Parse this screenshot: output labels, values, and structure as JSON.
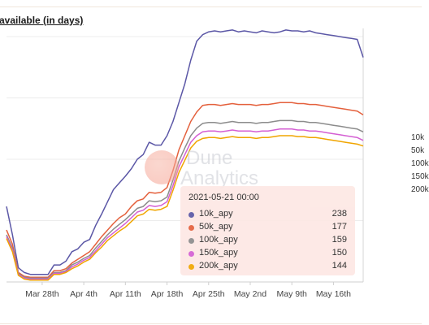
{
  "title": "available (in days)",
  "legend_right": [
    "10k",
    "50k",
    "100k",
    "150k",
    "200k"
  ],
  "watermark": {
    "line1": "Dune",
    "line2": "Analytics"
  },
  "tooltip": {
    "date": "2021-05-21 00:00",
    "rows": [
      {
        "name": "10k_apy",
        "value": "238",
        "color": "#5b57a6"
      },
      {
        "name": "50k_apy",
        "value": "177",
        "color": "#e4603c"
      },
      {
        "name": "100k_apy",
        "value": "159",
        "color": "#8c8c8c"
      },
      {
        "name": "150k_apy",
        "value": "150",
        "color": "#d45fd3"
      },
      {
        "name": "200k_apy",
        "value": "144",
        "color": "#f0a500"
      }
    ]
  },
  "chart_data": {
    "type": "line",
    "x_ticks": [
      "Mar 28th",
      "Apr 4th",
      "Apr 11th",
      "Apr 18th",
      "Apr 25th",
      "May 2nd",
      "May 9th",
      "May 16th"
    ],
    "grid": true,
    "x_start": "2021-03-22",
    "x_end": "2021-05-21",
    "ylim": [
      0,
      260
    ],
    "series": [
      {
        "name": "10k_apy",
        "color": "#5b57a6",
        "values": [
          80,
          50,
          15,
          10,
          8,
          8,
          8,
          8,
          18,
          18,
          22,
          32,
          35,
          42,
          45,
          60,
          72,
          85,
          98,
          105,
          112,
          120,
          130,
          135,
          148,
          145,
          145,
          155,
          170,
          190,
          210,
          235,
          255,
          262,
          265,
          266,
          265,
          266,
          267,
          265,
          266,
          265,
          264,
          266,
          265,
          264,
          265,
          267,
          266,
          266,
          265,
          266,
          264,
          263,
          262,
          261,
          260,
          259,
          258,
          257,
          238
        ]
      },
      {
        "name": "50k_apy",
        "color": "#e4603c",
        "values": [
          55,
          40,
          10,
          6,
          5,
          5,
          5,
          5,
          12,
          12,
          14,
          20,
          24,
          28,
          32,
          40,
          48,
          55,
          62,
          68,
          72,
          80,
          86,
          88,
          95,
          94,
          95,
          100,
          118,
          140,
          155,
          170,
          180,
          187,
          188,
          188,
          187,
          188,
          189,
          188,
          188,
          188,
          187,
          188,
          188,
          189,
          190,
          190,
          190,
          189,
          189,
          188,
          188,
          187,
          186,
          185,
          184,
          183,
          182,
          181,
          177
        ]
      },
      {
        "name": "100k_apy",
        "color": "#8c8c8c",
        "values": [
          50,
          36,
          9,
          5,
          4,
          4,
          4,
          4,
          10,
          10,
          12,
          18,
          21,
          25,
          28,
          36,
          43,
          50,
          56,
          61,
          66,
          72,
          78,
          80,
          86,
          85,
          86,
          90,
          108,
          128,
          142,
          155,
          163,
          168,
          169,
          169,
          168,
          169,
          170,
          169,
          169,
          169,
          168,
          169,
          169,
          170,
          171,
          171,
          171,
          170,
          170,
          169,
          169,
          168,
          167,
          166,
          165,
          164,
          163,
          162,
          159
        ]
      },
      {
        "name": "150k_apy",
        "color": "#d45fd3",
        "values": [
          48,
          34,
          8,
          4,
          3,
          3,
          3,
          3,
          9,
          9,
          11,
          16,
          19,
          23,
          26,
          33,
          40,
          47,
          52,
          57,
          62,
          68,
          74,
          76,
          81,
          80,
          81,
          85,
          102,
          122,
          135,
          148,
          155,
          159,
          160,
          160,
          159,
          160,
          161,
          160,
          160,
          160,
          159,
          160,
          160,
          161,
          162,
          162,
          162,
          161,
          161,
          160,
          160,
          159,
          158,
          157,
          156,
          155,
          154,
          153,
          150
        ]
      },
      {
        "name": "200k_apy",
        "color": "#f0a500",
        "values": [
          46,
          32,
          7,
          3,
          2,
          2,
          2,
          2,
          8,
          8,
          10,
          14,
          17,
          21,
          24,
          31,
          37,
          44,
          49,
          54,
          58,
          64,
          70,
          72,
          77,
          76,
          77,
          80,
          97,
          116,
          129,
          142,
          149,
          152,
          153,
          153,
          152,
          153,
          154,
          153,
          153,
          153,
          152,
          153,
          153,
          154,
          155,
          155,
          155,
          154,
          154,
          153,
          153,
          152,
          151,
          150,
          149,
          148,
          147,
          146,
          144
        ]
      }
    ]
  }
}
